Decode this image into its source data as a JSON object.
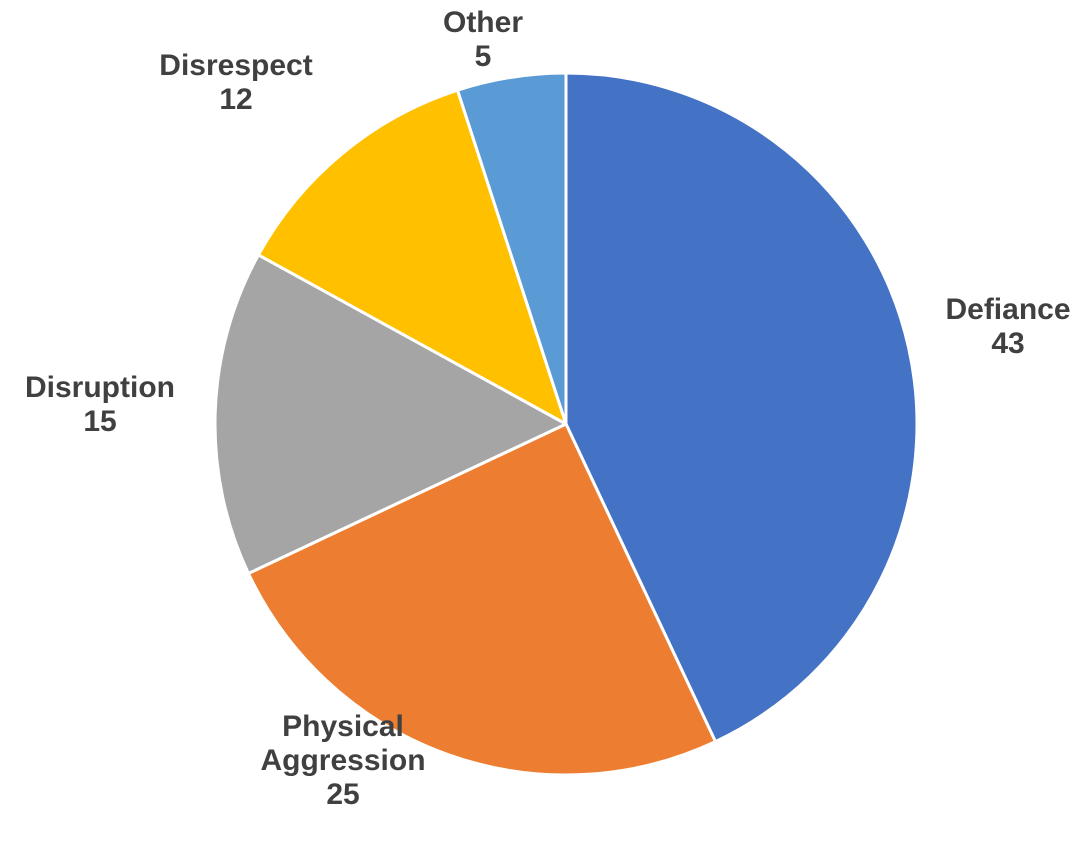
{
  "chart_data": {
    "type": "pie",
    "title": "",
    "legend": "none",
    "slices": [
      {
        "label": "Defiance",
        "label_lines": [
          "Defiance"
        ],
        "value": 43,
        "value_label": "43",
        "color": "#4472C4"
      },
      {
        "label": "Physical Aggression",
        "label_lines": [
          "Physical",
          "Aggression"
        ],
        "value": 25,
        "value_label": "25",
        "color": "#ED7D31"
      },
      {
        "label": "Disruption",
        "label_lines": [
          "Disruption"
        ],
        "value": 15,
        "value_label": "15",
        "color": "#A5A5A5"
      },
      {
        "label": "Disrespect",
        "label_lines": [
          "Disrespect"
        ],
        "value": 12,
        "value_label": "12",
        "color": "#FFC000"
      },
      {
        "label": "Other",
        "label_lines": [
          "Other"
        ],
        "value": 5,
        "value_label": "5",
        "color": "#5B9BD5"
      }
    ]
  }
}
